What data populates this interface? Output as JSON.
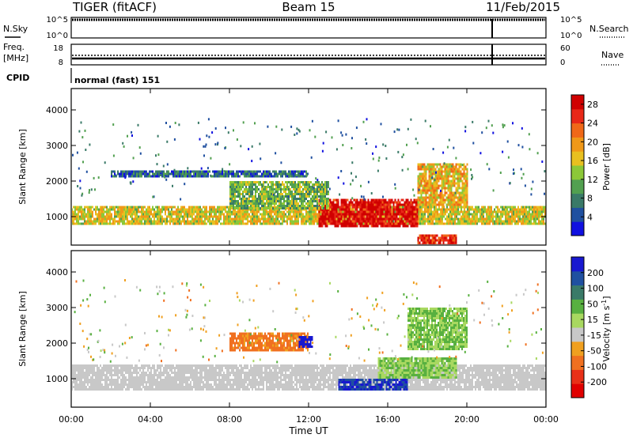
{
  "header": {
    "radar": "TIGER (fitACF)",
    "beam": "Beam 15",
    "date": "11/Feb/2015"
  },
  "nsky": {
    "label": "N.Sky",
    "ticks": [
      "10^5",
      "10^0"
    ],
    "right_label": "N.Search",
    "right_ticks": [
      "10^5",
      "10^0"
    ]
  },
  "freq": {
    "label1": "Freq.",
    "label2": "[MHz]",
    "ticks": [
      "18",
      "8"
    ],
    "right_label": "Nave",
    "right_ticks": [
      "60",
      "0"
    ]
  },
  "cpid": {
    "label": "CPID",
    "text": "normal (fast) 151"
  },
  "xaxis": {
    "label": "Time UT",
    "ticks": [
      "00:00",
      "04:00",
      "08:00",
      "12:00",
      "16:00",
      "20:00",
      "00:00"
    ]
  },
  "chart_data": [
    {
      "type": "heatmap",
      "title": "Power",
      "ylabel": "Slant Range [km]",
      "xlabel": "Time UT",
      "yticks": [
        "1000",
        "2000",
        "3000",
        "4000"
      ],
      "ylim": [
        200,
        4600
      ],
      "xlim": [
        0,
        24
      ],
      "colorbar": {
        "label": "Power [dB]",
        "ticks": [
          "4",
          "8",
          "12",
          "16",
          "20",
          "24",
          "28"
        ],
        "range": [
          0,
          30
        ],
        "colors": [
          "#1010e0",
          "#2050a0",
          "#3a7a68",
          "#52a050",
          "#8cc838",
          "#e8c020",
          "#f09818",
          "#f06818",
          "#e82818",
          "#d00000"
        ]
      },
      "echo_regions": [
        {
          "t_start": 0.0,
          "t_end": 24.0,
          "range_km": [
            800,
            1300
          ],
          "power_db": 16
        },
        {
          "t_start": 12.5,
          "t_end": 17.5,
          "range_km": [
            700,
            1500
          ],
          "power_db": 28
        },
        {
          "t_start": 8.0,
          "t_end": 13.0,
          "range_km": [
            1200,
            2000
          ],
          "power_db": 12
        },
        {
          "t_start": 17.5,
          "t_end": 20.0,
          "range_km": [
            1300,
            2500
          ],
          "power_db": 18
        },
        {
          "t_start": 2.0,
          "t_end": 12.0,
          "range_km": [
            2100,
            2300
          ],
          "power_db": 6
        },
        {
          "t_start": 17.5,
          "t_end": 19.5,
          "range_km": [
            200,
            500
          ],
          "power_db": 26
        }
      ]
    },
    {
      "type": "heatmap",
      "title": "Velocity",
      "ylabel": "Slant Range [km]",
      "xlabel": "Time UT",
      "yticks": [
        "1000",
        "2000",
        "3000",
        "4000"
      ],
      "ylim": [
        200,
        4600
      ],
      "xlim": [
        0,
        24
      ],
      "colorbar": {
        "label": "Velocity [m s^-1]",
        "ticks": [
          "200",
          "100",
          "50",
          "15",
          "-15",
          "-50",
          "-100",
          "-200"
        ],
        "range": [
          -250,
          250
        ],
        "colors": [
          "#1818d0",
          "#2050a0",
          "#3a7a68",
          "#58b040",
          "#a8d860",
          "#c8c8c8",
          "#f0a020",
          "#f07020",
          "#e83018",
          "#e00000"
        ]
      },
      "echo_regions": [
        {
          "t_start": 0.0,
          "t_end": 24.0,
          "range_km": [
            700,
            1400
          ],
          "velocity": 0
        },
        {
          "t_start": 13.5,
          "t_end": 17.0,
          "range_km": [
            700,
            1000
          ],
          "velocity": 150
        },
        {
          "t_start": 15.5,
          "t_end": 19.5,
          "range_km": [
            1000,
            1600
          ],
          "velocity": 30
        },
        {
          "t_start": 17.0,
          "t_end": 20.0,
          "range_km": [
            1800,
            3000
          ],
          "velocity": 30
        },
        {
          "t_start": 8.0,
          "t_end": 12.0,
          "range_km": [
            1800,
            2300
          ],
          "velocity": -60
        },
        {
          "t_start": 11.5,
          "t_end": 12.2,
          "range_km": [
            1900,
            2200
          ],
          "velocity": 220
        }
      ]
    }
  ]
}
